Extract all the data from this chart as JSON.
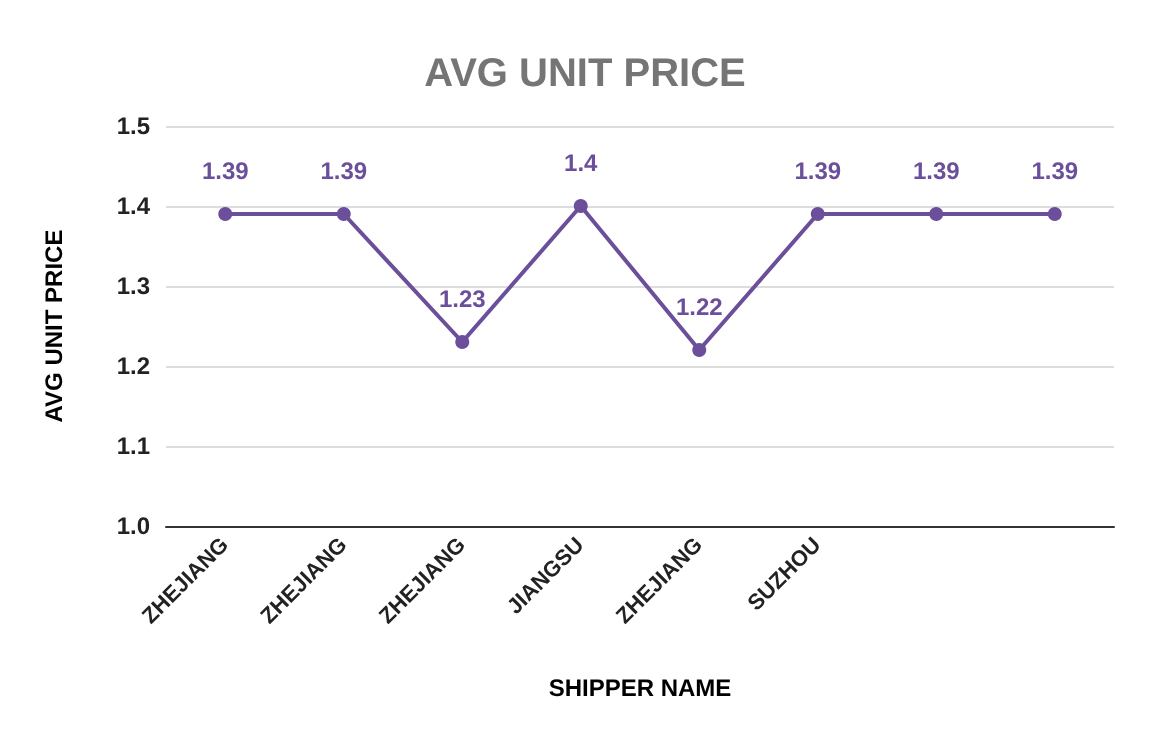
{
  "chart_data": {
    "type": "line",
    "title": "AVG UNIT PRICE",
    "xlabel": "SHIPPER NAME",
    "ylabel": "AVG UNIT PRICE",
    "categories": [
      "ZHEJIANG",
      "ZHEJIANG",
      "ZHEJIANG",
      "JIANGSU",
      "ZHEJIANG",
      "SUZHOU",
      null,
      null
    ],
    "series": [
      {
        "color": "#6b4f9a",
        "values": [
          1.39,
          1.39,
          1.23,
          1.4,
          1.22,
          1.39,
          1.39,
          1.39
        ]
      }
    ],
    "ylim": [
      1.0,
      1.5
    ],
    "yticks": [
      {
        "value": 1,
        "label": "1.0"
      },
      1.1,
      1.2,
      1.3,
      1.4,
      1.5
    ],
    "grid": "y",
    "marker": "circle",
    "line_style": "solid",
    "data_labels": true
  }
}
